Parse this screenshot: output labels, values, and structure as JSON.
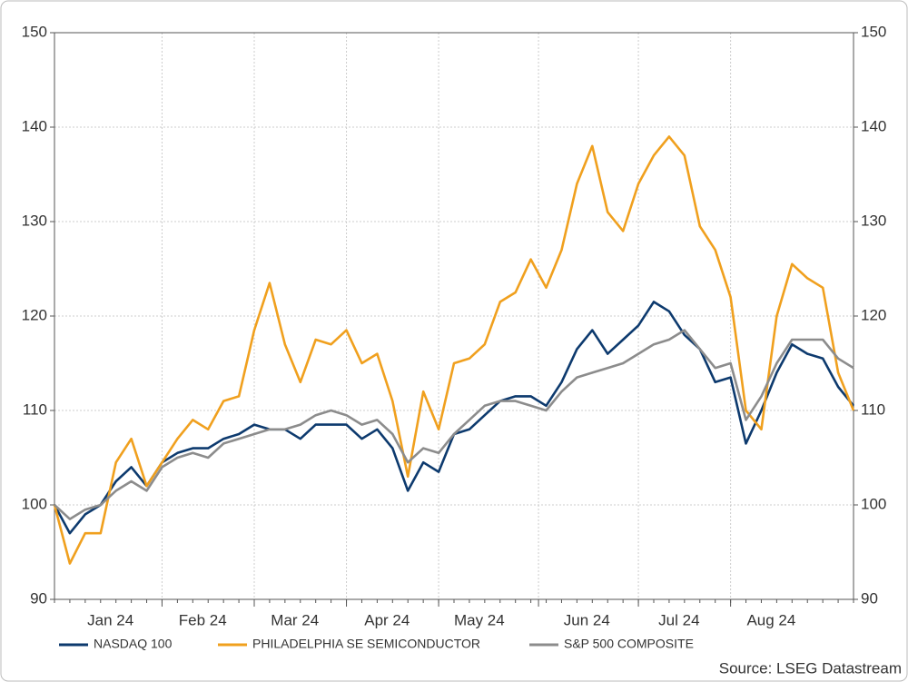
{
  "chart_data": {
    "type": "line",
    "source": "Source: LSEG Datastream",
    "categories": [
      null,
      null,
      null,
      null,
      "Jan 24",
      null,
      null,
      null,
      null,
      null,
      "Feb 24",
      null,
      null,
      null,
      null,
      null,
      "Mar 24",
      null,
      null,
      null,
      null,
      null,
      "Apr 24",
      null,
      null,
      null,
      null,
      null,
      "May 24",
      null,
      null,
      null,
      null,
      null,
      null,
      "Jun 24",
      null,
      null,
      null,
      null,
      null,
      "Jul 24",
      null,
      null,
      null,
      null,
      null,
      "Aug 24",
      null,
      null,
      null,
      null,
      null
    ],
    "series": [
      {
        "name": "NASDAQ 100",
        "color": "#0d3a6e",
        "values": [
          100,
          97,
          99,
          100,
          102.5,
          104,
          102,
          104.5,
          105.5,
          106,
          106,
          107,
          107.5,
          108.5,
          108,
          108,
          107,
          108.5,
          108.5,
          108.5,
          107,
          108,
          106,
          101.5,
          104.5,
          103.5,
          107.5,
          108,
          109.5,
          111,
          111.5,
          111.5,
          110.5,
          113,
          116.5,
          118.5,
          116,
          117.5,
          119,
          121.5,
          120.5,
          118,
          116.5,
          113,
          113.5,
          106.5,
          110,
          114,
          117,
          116,
          115.5,
          112.5,
          110.5
        ]
      },
      {
        "name": "PHILADELPHIA SE SEMICONDUCTOR",
        "color": "#f0a01e",
        "values": [
          100,
          93.8,
          97,
          97,
          104.5,
          107,
          102,
          104.5,
          107,
          109,
          108,
          111,
          111.5,
          118.5,
          123.5,
          117,
          113,
          117.5,
          117,
          118.5,
          115,
          116,
          111,
          103,
          112,
          108,
          115,
          115.5,
          117,
          121.5,
          122.5,
          126,
          123,
          127,
          134,
          138,
          131,
          129,
          134,
          137,
          139,
          137,
          129.5,
          127,
          122,
          110,
          108,
          120,
          125.5,
          124,
          123,
          114,
          110
        ]
      },
      {
        "name": "S&P 500 COMPOSITE",
        "color": "#8c8c8c",
        "values": [
          100,
          98.5,
          99.5,
          100,
          101.5,
          102.5,
          101.5,
          104,
          105,
          105.5,
          105,
          106.5,
          107,
          107.5,
          108,
          108,
          108.5,
          109.5,
          110,
          109.5,
          108.5,
          109,
          107.5,
          104.5,
          106,
          105.5,
          107.5,
          109,
          110.5,
          111,
          111,
          110.5,
          110,
          112,
          113.5,
          114,
          114.5,
          115,
          116,
          117,
          117.5,
          118.5,
          116.5,
          114.5,
          115,
          109,
          111.5,
          115,
          117.5,
          117.5,
          117.5,
          115.5,
          114.5
        ]
      }
    ],
    "ylim": [
      90,
      150
    ],
    "yticks": [
      90,
      100,
      110,
      120,
      130,
      140,
      150
    ],
    "y2lim": [
      90,
      150
    ],
    "y2ticks": [
      90,
      100,
      110,
      120,
      130,
      140,
      150
    ],
    "grid": true
  }
}
